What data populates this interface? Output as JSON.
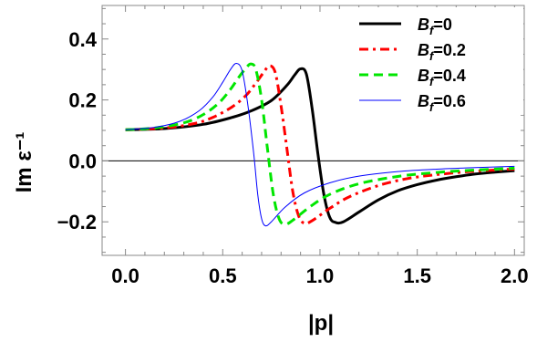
{
  "chart_data": {
    "type": "line",
    "xlabel": "|p|",
    "ylabel": "Im ε⁻¹",
    "xlim": [
      -0.12,
      2.05
    ],
    "ylim": [
      -0.31,
      0.51
    ],
    "x_ticks": [
      0.0,
      0.5,
      1.0,
      1.5,
      2.0
    ],
    "x_tick_labels": [
      "0.0",
      "0.5",
      "1.0",
      "1.5",
      "2.0"
    ],
    "y_ticks": [
      -0.2,
      0.0,
      0.2,
      0.4
    ],
    "y_tick_labels": [
      "−0.2",
      "0.0",
      "0.2",
      "0.4"
    ],
    "zero_line": true,
    "grid": false,
    "legend_position": "top-right",
    "series": [
      {
        "name": "B_f=0",
        "legend_main": "B",
        "legend_sub": "f",
        "legend_rest": "=0",
        "color": "#000000",
        "dash": "solid",
        "width": 3,
        "points": [
          [
            0.0,
            0.102
          ],
          [
            0.2,
            0.106
          ],
          [
            0.4,
            0.12
          ],
          [
            0.55,
            0.143
          ],
          [
            0.65,
            0.165
          ],
          [
            0.75,
            0.198
          ],
          [
            0.83,
            0.248
          ],
          [
            0.87,
            0.282
          ],
          [
            0.9,
            0.302
          ],
          [
            0.93,
            0.285
          ],
          [
            0.96,
            0.17
          ],
          [
            0.99,
            0.02
          ],
          [
            1.02,
            -0.11
          ],
          [
            1.05,
            -0.185
          ],
          [
            1.08,
            -0.202
          ],
          [
            1.12,
            -0.2
          ],
          [
            1.2,
            -0.168
          ],
          [
            1.3,
            -0.128
          ],
          [
            1.4,
            -0.098
          ],
          [
            1.5,
            -0.078
          ],
          [
            1.6,
            -0.063
          ],
          [
            1.7,
            -0.052
          ],
          [
            1.8,
            -0.043
          ],
          [
            1.9,
            -0.037
          ],
          [
            2.0,
            -0.032
          ]
        ]
      },
      {
        "name": "B_f=0.2",
        "legend_main": "B",
        "legend_sub": "f",
        "legend_rest": "=0.2",
        "color": "#ff0000",
        "dash": "dashdot",
        "width": 3,
        "points": [
          [
            0.0,
            0.102
          ],
          [
            0.2,
            0.108
          ],
          [
            0.35,
            0.122
          ],
          [
            0.45,
            0.143
          ],
          [
            0.55,
            0.178
          ],
          [
            0.62,
            0.215
          ],
          [
            0.67,
            0.255
          ],
          [
            0.71,
            0.29
          ],
          [
            0.74,
            0.312
          ],
          [
            0.77,
            0.29
          ],
          [
            0.8,
            0.18
          ],
          [
            0.83,
            0.04
          ],
          [
            0.86,
            -0.1
          ],
          [
            0.89,
            -0.18
          ],
          [
            0.92,
            -0.205
          ],
          [
            0.96,
            -0.196
          ],
          [
            1.05,
            -0.156
          ],
          [
            1.15,
            -0.118
          ],
          [
            1.3,
            -0.081
          ],
          [
            1.45,
            -0.058
          ],
          [
            1.6,
            -0.045
          ],
          [
            1.75,
            -0.036
          ],
          [
            1.9,
            -0.03
          ],
          [
            2.0,
            -0.027
          ]
        ]
      },
      {
        "name": "B_f=0.4",
        "legend_main": "B",
        "legend_sub": "f",
        "legend_rest": "=0.4",
        "color": "#00e600",
        "dash": "dashed",
        "width": 3,
        "points": [
          [
            0.0,
            0.102
          ],
          [
            0.15,
            0.108
          ],
          [
            0.3,
            0.125
          ],
          [
            0.4,
            0.152
          ],
          [
            0.48,
            0.19
          ],
          [
            0.54,
            0.235
          ],
          [
            0.58,
            0.272
          ],
          [
            0.62,
            0.305
          ],
          [
            0.645,
            0.318
          ],
          [
            0.67,
            0.3
          ],
          [
            0.7,
            0.2
          ],
          [
            0.73,
            0.04
          ],
          [
            0.76,
            -0.11
          ],
          [
            0.79,
            -0.19
          ],
          [
            0.82,
            -0.208
          ],
          [
            0.86,
            -0.195
          ],
          [
            0.95,
            -0.15
          ],
          [
            1.05,
            -0.11
          ],
          [
            1.2,
            -0.075
          ],
          [
            1.4,
            -0.051
          ],
          [
            1.6,
            -0.038
          ],
          [
            1.8,
            -0.03
          ],
          [
            2.0,
            -0.024
          ]
        ]
      },
      {
        "name": "B_f=0.6",
        "legend_main": "B",
        "legend_sub": "f",
        "legend_rest": "=0.6",
        "color": "#0000ff",
        "dash": "solid",
        "width": 1,
        "points": [
          [
            0.0,
            0.102
          ],
          [
            0.15,
            0.11
          ],
          [
            0.28,
            0.13
          ],
          [
            0.38,
            0.165
          ],
          [
            0.45,
            0.21
          ],
          [
            0.5,
            0.258
          ],
          [
            0.54,
            0.3
          ],
          [
            0.57,
            0.32
          ],
          [
            0.6,
            0.295
          ],
          [
            0.63,
            0.18
          ],
          [
            0.66,
            0.02
          ],
          [
            0.68,
            -0.11
          ],
          [
            0.7,
            -0.19
          ],
          [
            0.72,
            -0.213
          ],
          [
            0.75,
            -0.2
          ],
          [
            0.82,
            -0.152
          ],
          [
            0.92,
            -0.105
          ],
          [
            1.05,
            -0.072
          ],
          [
            1.2,
            -0.05
          ],
          [
            1.4,
            -0.035
          ],
          [
            1.6,
            -0.027
          ],
          [
            1.8,
            -0.022
          ],
          [
            2.0,
            -0.018
          ]
        ]
      }
    ]
  }
}
